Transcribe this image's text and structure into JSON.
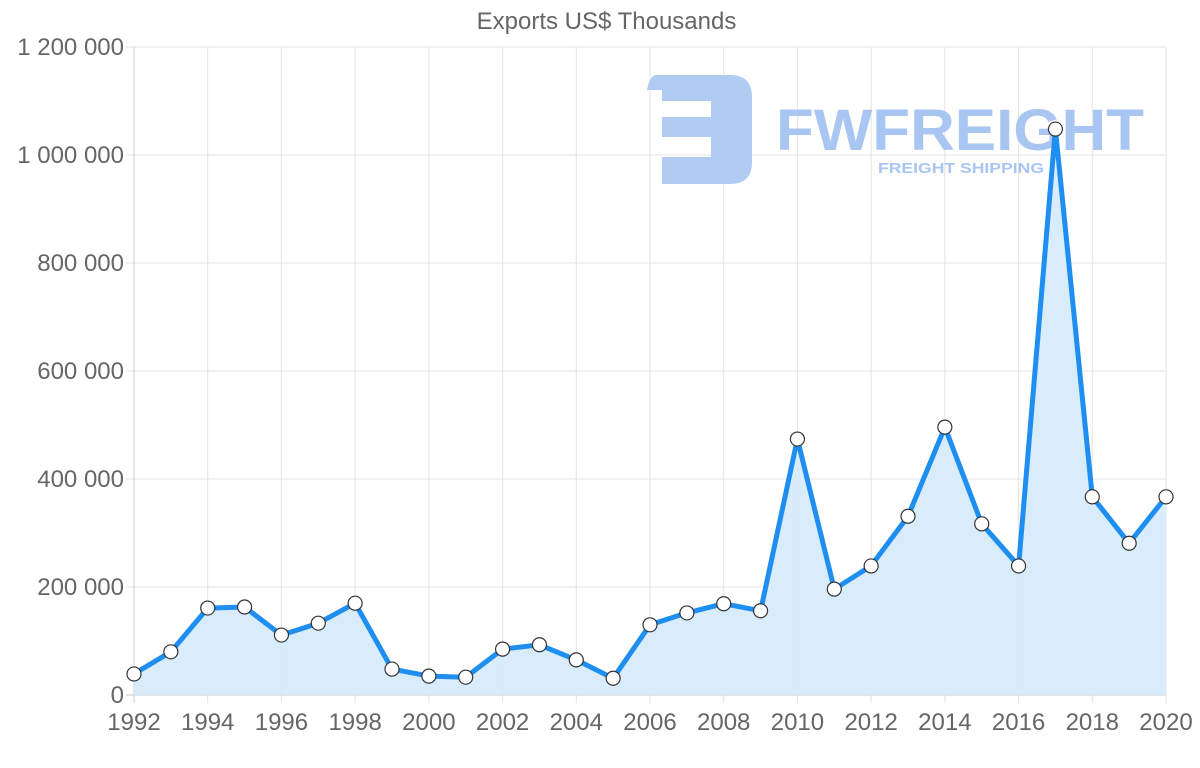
{
  "chart_data": {
    "type": "area",
    "title": "Exports US$ Thousands",
    "xlabel": "",
    "ylabel": "",
    "x": [
      1992,
      1993,
      1994,
      1995,
      1996,
      1997,
      1998,
      1999,
      2000,
      2001,
      2002,
      2003,
      2004,
      2005,
      2006,
      2007,
      2008,
      2009,
      2010,
      2011,
      2012,
      2013,
      2014,
      2015,
      2016,
      2017,
      2018,
      2019,
      2020
    ],
    "series": [
      {
        "name": "Exports US$ Thousands",
        "values": [
          39000,
          80000,
          161000,
          163000,
          111000,
          133000,
          170000,
          48000,
          35000,
          33000,
          85000,
          93000,
          65000,
          31000,
          130000,
          152000,
          169000,
          156000,
          474000,
          196000,
          239000,
          331000,
          496000,
          317000,
          239000,
          1048000,
          367000,
          281000,
          367000
        ]
      }
    ],
    "xticks": [
      "1992",
      "1994",
      "1996",
      "1998",
      "2000",
      "2002",
      "2004",
      "2006",
      "2008",
      "2010",
      "2012",
      "2014",
      "2016",
      "2018",
      "2020"
    ],
    "yticks": [
      "0",
      "200 000",
      "400 000",
      "600 000",
      "800 000",
      "1 000 000",
      "1 200 000"
    ],
    "ylim": [
      0,
      1200000
    ],
    "xlim": [
      1992,
      2020
    ],
    "grid": true,
    "legend": "none",
    "colors": {
      "line": "#1e8ff0",
      "fill": "#d6ebfc",
      "point_fill": "#ffffff",
      "point_stroke": "#333333",
      "grid": "#e3e3e3",
      "text": "#666666"
    }
  },
  "watermark": {
    "brand": "FWFREIGHT",
    "tagline": "FREIGHT SHIPPING",
    "color": "#a9c6f2"
  }
}
